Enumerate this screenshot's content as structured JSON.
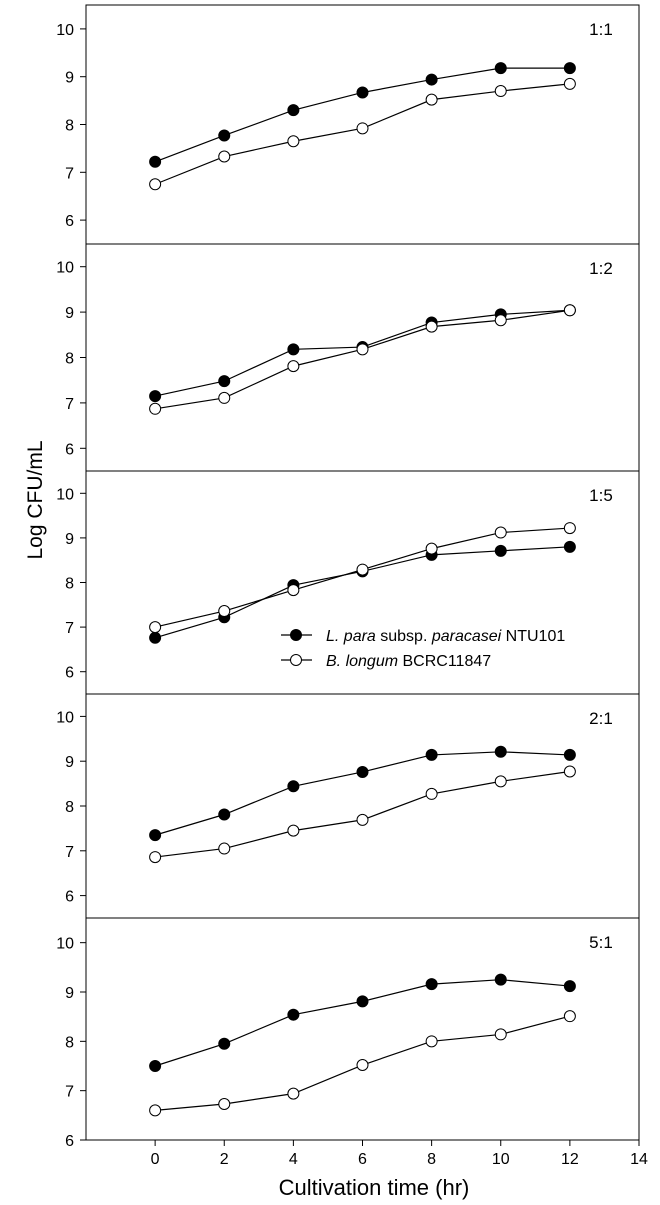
{
  "figure": {
    "ylabel": "Log CFU/mL",
    "xlabel": "Cultivation time (hr)"
  },
  "chart_data": {
    "type": "line",
    "xlabel": "Cultivation time (hr)",
    "ylabel": "Log CFU/mL",
    "x_ticks": [
      "0",
      "2",
      "4",
      "6",
      "8",
      "10",
      "12",
      "14"
    ],
    "xlim": [
      -2,
      14
    ],
    "grid": false,
    "legend": {
      "location": "inside panel 1:5, lower right",
      "entries": [
        {
          "prefix": "",
          "italic1": "L. para",
          "mid": " subsp. ",
          "italic2": "paracasei",
          "suffix": " NTU101",
          "marker": "filled-circle"
        },
        {
          "prefix": "",
          "italic1": "B. longum",
          "mid": "",
          "italic2": "",
          "suffix": " BCRC11847",
          "marker": "open-circle"
        }
      ]
    },
    "series_styles": [
      {
        "marker": "filled-circle",
        "fill": "#000000"
      },
      {
        "marker": "open-circle",
        "fill": "#ffffff"
      }
    ],
    "panels": [
      {
        "label": "1:1",
        "ylim": [
          5.5,
          10.5
        ],
        "y_ticks": [
          "6",
          "7",
          "8",
          "9",
          "10"
        ],
        "x": [
          0,
          2,
          4,
          6,
          8,
          10,
          12
        ],
        "series": [
          {
            "values": [
              7.22,
              7.77,
              8.3,
              8.67,
              8.94,
              9.18,
              9.18
            ]
          },
          {
            "values": [
              6.75,
              7.33,
              7.65,
              7.92,
              8.52,
              8.7,
              8.85
            ]
          }
        ]
      },
      {
        "label": "1:2",
        "ylim": [
          5.5,
          10.5
        ],
        "y_ticks": [
          "6",
          "7",
          "8",
          "9",
          "10"
        ],
        "x": [
          0,
          2,
          4,
          6,
          8,
          10,
          12
        ],
        "series": [
          {
            "values": [
              7.15,
              7.48,
              8.18,
              8.23,
              8.77,
              8.95,
              9.04
            ]
          },
          {
            "values": [
              6.87,
              7.11,
              7.81,
              8.18,
              8.68,
              8.82,
              9.04
            ]
          }
        ]
      },
      {
        "label": "1:5",
        "ylim": [
          5.5,
          10.5
        ],
        "y_ticks": [
          "6",
          "7",
          "8",
          "9",
          "10"
        ],
        "x": [
          0,
          2,
          4,
          6,
          8,
          10,
          12
        ],
        "series": [
          {
            "values": [
              6.76,
              7.22,
              7.94,
              8.25,
              8.62,
              8.71,
              8.8
            ]
          },
          {
            "values": [
              7.0,
              7.36,
              7.83,
              8.29,
              8.76,
              9.12,
              9.22
            ]
          }
        ]
      },
      {
        "label": "2:1",
        "ylim": [
          5.5,
          10.5
        ],
        "y_ticks": [
          "6",
          "7",
          "8",
          "9",
          "10"
        ],
        "x": [
          0,
          2,
          4,
          6,
          8,
          10,
          12
        ],
        "series": [
          {
            "values": [
              7.35,
              7.81,
              8.44,
              8.76,
              9.14,
              9.21,
              9.14
            ]
          },
          {
            "values": [
              6.86,
              7.05,
              7.45,
              7.69,
              8.27,
              8.55,
              8.77
            ]
          }
        ]
      },
      {
        "label": "5:1",
        "ylim": [
          6,
          10.5
        ],
        "y_ticks": [
          "6",
          "7",
          "8",
          "9",
          "10"
        ],
        "x": [
          0,
          2,
          4,
          6,
          8,
          10,
          12
        ],
        "series": [
          {
            "values": [
              7.5,
              7.95,
              8.54,
              8.81,
              9.16,
              9.25,
              9.12
            ]
          },
          {
            "values": [
              6.6,
              6.73,
              6.94,
              7.52,
              8.0,
              8.14,
              8.51
            ]
          }
        ]
      }
    ]
  }
}
